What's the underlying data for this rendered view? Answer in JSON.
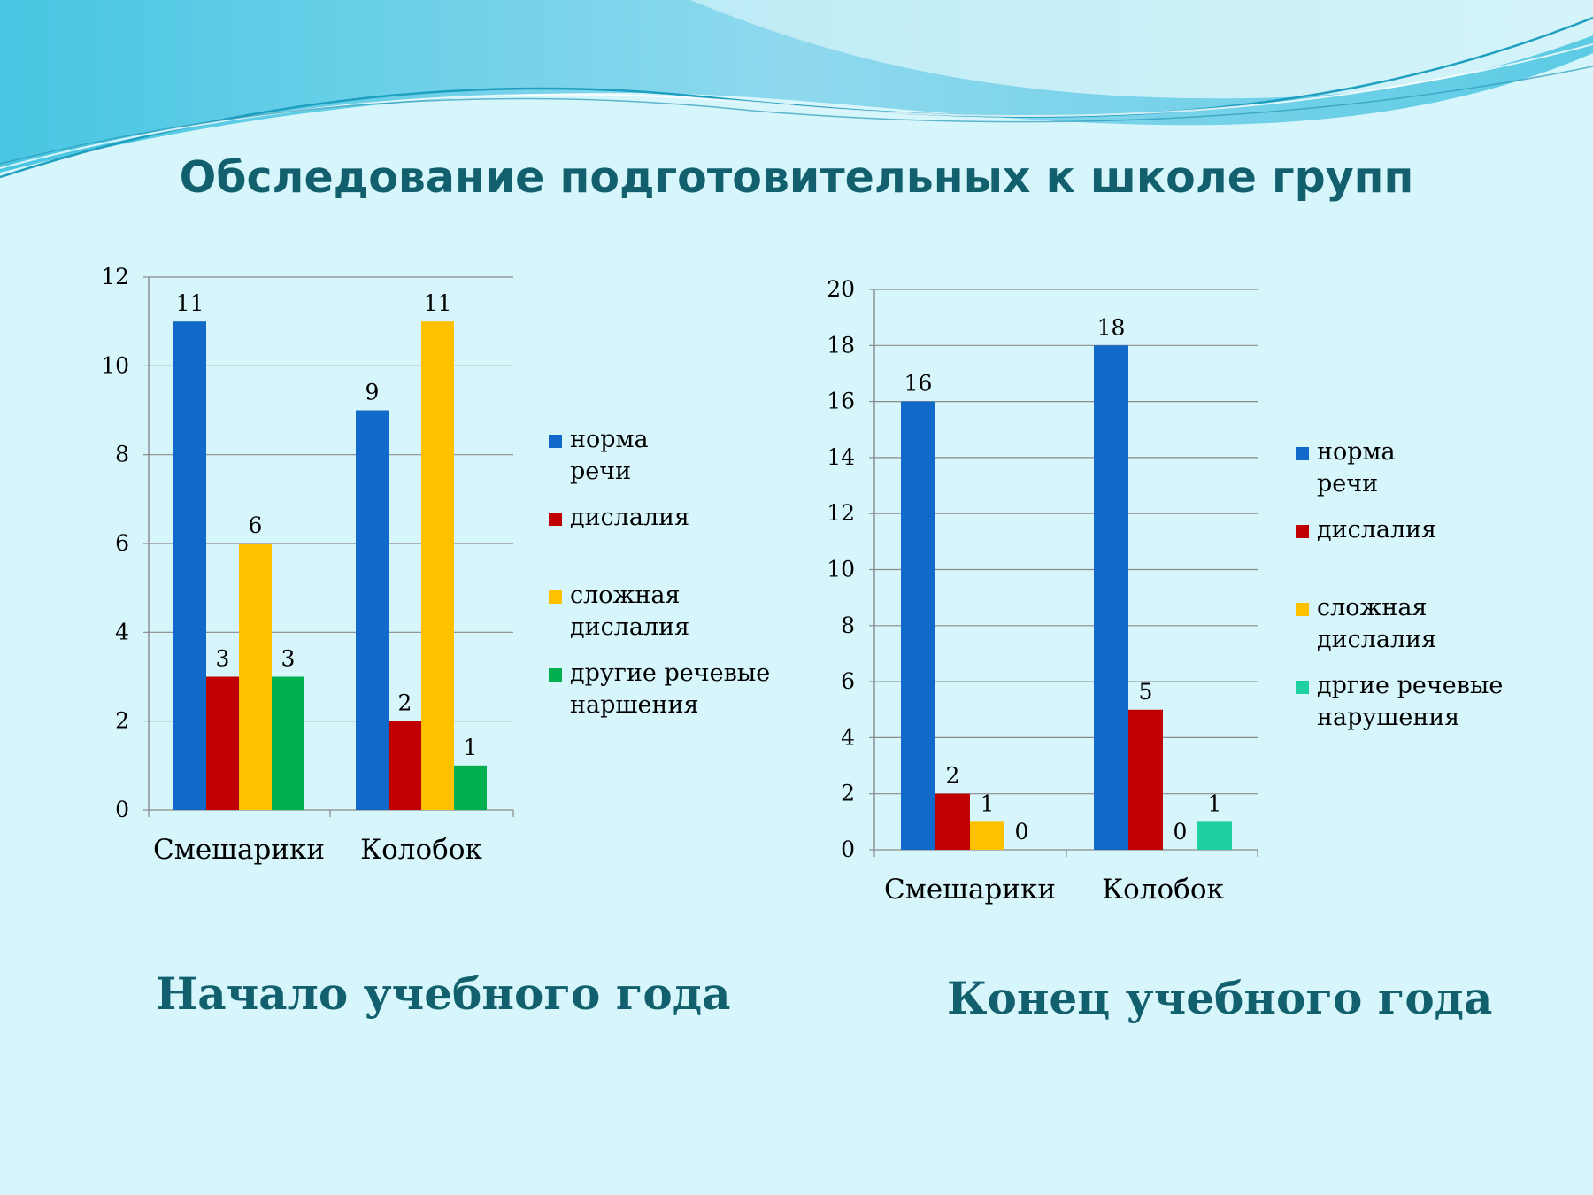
{
  "title": "Обследование подготовительных к школе групп",
  "captions": {
    "left": "Начало учебного года",
    "right": "Конец учебного года"
  },
  "colors": {
    "background": "#d6f6fb",
    "title": "#12606d",
    "wave_dark": "#4fc0de",
    "wave_light": "#a5e4f2"
  },
  "chart_data": [
    {
      "type": "bar",
      "categories": [
        "Смешарики",
        "Колобок"
      ],
      "ylim": [
        0,
        12
      ],
      "yticks": [
        0,
        2,
        4,
        6,
        8,
        10,
        12
      ],
      "grid": true,
      "legend_position": "right",
      "series": [
        {
          "name": "норма речи",
          "values": [
            11,
            9
          ],
          "color": "#1169c9",
          "labels": [
            "11",
            "9"
          ]
        },
        {
          "name": "дислалия",
          "values": [
            3,
            2
          ],
          "color": "#c00000",
          "labels": [
            "3",
            "2"
          ]
        },
        {
          "name": "сложная дислалия",
          "values": [
            6,
            11
          ],
          "color": "#ffc000",
          "labels": [
            "6",
            "11"
          ]
        },
        {
          "name": "другие речевые наршения",
          "values": [
            3,
            1
          ],
          "color": "#00b050",
          "labels": [
            "3",
            "1"
          ]
        }
      ]
    },
    {
      "type": "bar",
      "categories": [
        "Смешарики",
        "Колобок"
      ],
      "ylim": [
        0,
        20
      ],
      "yticks": [
        0,
        2,
        4,
        6,
        8,
        10,
        12,
        14,
        16,
        18,
        20
      ],
      "grid": true,
      "legend_position": "right",
      "series": [
        {
          "name": "норма речи",
          "values": [
            16,
            18
          ],
          "color": "#1169c9",
          "labels": [
            "16",
            "18"
          ]
        },
        {
          "name": "дислалия",
          "values": [
            2,
            5
          ],
          "color": "#c00000",
          "labels": [
            "2",
            "5"
          ]
        },
        {
          "name": "сложная дислалия",
          "values": [
            1,
            0
          ],
          "color": "#ffc000",
          "labels": [
            "1",
            "0"
          ]
        },
        {
          "name": "дргие речевые нарушения",
          "values": [
            0,
            1
          ],
          "color": "#1fd1a1",
          "labels": [
            "0",
            "1"
          ]
        }
      ]
    }
  ]
}
